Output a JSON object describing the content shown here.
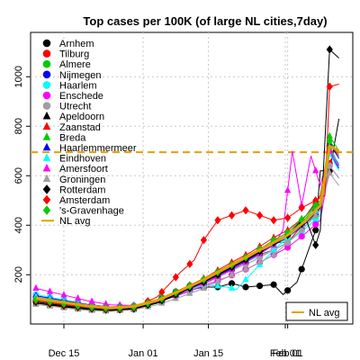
{
  "chart_data": {
    "type": "line",
    "title": "Top cases per 100K (of large NL cities,7day)",
    "xlabel": "",
    "ylabel": "",
    "x_range": [
      -5,
      44
    ],
    "ylim": [
      30,
      1150
    ],
    "x_ticks": [
      {
        "x": 0,
        "label": "Dec 15"
      },
      {
        "x": 17,
        "label": "Jan 01"
      },
      {
        "x": 31,
        "label": "Jan 15"
      },
      {
        "x": 48,
        "label": "Feb 01"
      }
    ],
    "y_ticks": [
      200,
      400,
      600,
      800,
      1000
    ],
    "grid": true,
    "reference_line": {
      "y": 695,
      "color": "#E69F00",
      "label": "NL avg"
    },
    "legend_position": "top-left",
    "avg_legend_position": "bottom-right",
    "series": [
      {
        "name": "Arnhem",
        "color": "#000000",
        "marker": "circle",
        "anchors": [
          [
            -6,
            90
          ],
          [
            0,
            72
          ],
          [
            5,
            62
          ],
          [
            10,
            55
          ],
          [
            15,
            60
          ],
          [
            20,
            90
          ],
          [
            25,
            130
          ],
          [
            30,
            150
          ],
          [
            33,
            150
          ],
          [
            36,
            165
          ],
          [
            39,
            150
          ],
          [
            42,
            155
          ],
          [
            45,
            160
          ],
          [
            47,
            120
          ],
          [
            50,
            170
          ],
          [
            54,
            380
          ],
          [
            55,
            620
          ],
          [
            57,
            620
          ],
          [
            59,
            830
          ]
        ]
      },
      {
        "name": "Tilburg",
        "color": "#FF0000",
        "marker": "circle",
        "anchors": [
          [
            -6,
            95
          ],
          [
            0,
            78
          ],
          [
            5,
            68
          ],
          [
            10,
            62
          ],
          [
            15,
            68
          ],
          [
            20,
            95
          ],
          [
            25,
            135
          ],
          [
            30,
            175
          ],
          [
            35,
            230
          ],
          [
            40,
            270
          ],
          [
            45,
            300
          ],
          [
            48,
            330
          ],
          [
            52,
            420
          ],
          [
            55,
            480
          ],
          [
            57,
            650
          ],
          [
            58,
            700
          ]
        ]
      },
      {
        "name": "Almere",
        "color": "#00CD00",
        "marker": "circle",
        "anchors": [
          [
            -6,
            110
          ],
          [
            0,
            92
          ],
          [
            5,
            78
          ],
          [
            10,
            70
          ],
          [
            15,
            75
          ],
          [
            20,
            100
          ],
          [
            25,
            140
          ],
          [
            30,
            180
          ],
          [
            35,
            230
          ],
          [
            40,
            280
          ],
          [
            45,
            330
          ],
          [
            48,
            330
          ],
          [
            52,
            400
          ],
          [
            55,
            470
          ],
          [
            57,
            720
          ],
          [
            59,
            640
          ]
        ]
      },
      {
        "name": "Nijmegen",
        "color": "#0000FF",
        "marker": "circle",
        "anchors": [
          [
            -6,
            100
          ],
          [
            0,
            85
          ],
          [
            5,
            72
          ],
          [
            10,
            65
          ],
          [
            15,
            70
          ],
          [
            20,
            95
          ],
          [
            25,
            135
          ],
          [
            30,
            175
          ],
          [
            35,
            220
          ],
          [
            40,
            270
          ],
          [
            45,
            330
          ],
          [
            48,
            360
          ],
          [
            52,
            420
          ],
          [
            55,
            490
          ],
          [
            57,
            690
          ],
          [
            59,
            630
          ]
        ]
      },
      {
        "name": "Haarlem",
        "color": "#00FFFF",
        "marker": "circle",
        "anchors": [
          [
            -6,
            120
          ],
          [
            0,
            98
          ],
          [
            5,
            80
          ],
          [
            10,
            70
          ],
          [
            15,
            72
          ],
          [
            20,
            90
          ],
          [
            25,
            120
          ],
          [
            30,
            160
          ],
          [
            35,
            210
          ],
          [
            40,
            260
          ],
          [
            45,
            300
          ],
          [
            48,
            330
          ],
          [
            52,
            390
          ],
          [
            55,
            440
          ],
          [
            57,
            690
          ],
          [
            59,
            620
          ]
        ]
      },
      {
        "name": "Enschede",
        "color": "#FF00FF",
        "marker": "circle",
        "anchors": [
          [
            -6,
            110
          ],
          [
            0,
            90
          ],
          [
            5,
            76
          ],
          [
            10,
            68
          ],
          [
            15,
            70
          ],
          [
            20,
            88
          ],
          [
            25,
            120
          ],
          [
            30,
            155
          ],
          [
            35,
            190
          ],
          [
            40,
            230
          ],
          [
            45,
            280
          ],
          [
            48,
            310
          ],
          [
            52,
            370
          ],
          [
            55,
            420
          ],
          [
            57,
            640
          ],
          [
            59,
            590
          ]
        ]
      },
      {
        "name": "Utrecht",
        "color": "#A0A0A0",
        "marker": "circle",
        "anchors": [
          [
            -6,
            100
          ],
          [
            0,
            84
          ],
          [
            5,
            70
          ],
          [
            10,
            62
          ],
          [
            15,
            66
          ],
          [
            20,
            88
          ],
          [
            25,
            125
          ],
          [
            30,
            160
          ],
          [
            35,
            210
          ],
          [
            40,
            250
          ],
          [
            45,
            300
          ],
          [
            48,
            330
          ],
          [
            52,
            400
          ],
          [
            55,
            460
          ],
          [
            57,
            640
          ],
          [
            59,
            590
          ]
        ]
      },
      {
        "name": "Apeldoorn",
        "color": "#000000",
        "marker": "triangle",
        "anchors": [
          [
            -6,
            85
          ],
          [
            0,
            70
          ],
          [
            5,
            60
          ],
          [
            10,
            56
          ],
          [
            15,
            62
          ],
          [
            20,
            85
          ],
          [
            25,
            125
          ],
          [
            30,
            170
          ],
          [
            35,
            220
          ],
          [
            40,
            270
          ],
          [
            45,
            320
          ],
          [
            48,
            360
          ],
          [
            52,
            440
          ],
          [
            55,
            520
          ],
          [
            57,
            700
          ],
          [
            59,
            640
          ]
        ]
      },
      {
        "name": "Zaanstad",
        "color": "#FF0000",
        "marker": "triangle",
        "anchors": [
          [
            -6,
            105
          ],
          [
            0,
            88
          ],
          [
            5,
            74
          ],
          [
            10,
            66
          ],
          [
            15,
            72
          ],
          [
            20,
            96
          ],
          [
            25,
            140
          ],
          [
            30,
            185
          ],
          [
            35,
            240
          ],
          [
            40,
            290
          ],
          [
            45,
            350
          ],
          [
            48,
            380
          ],
          [
            52,
            440
          ],
          [
            55,
            520
          ],
          [
            57,
            730
          ],
          [
            59,
            680
          ]
        ]
      },
      {
        "name": "Breda",
        "color": "#00CD00",
        "marker": "triangle",
        "anchors": [
          [
            -6,
            95
          ],
          [
            0,
            80
          ],
          [
            5,
            68
          ],
          [
            10,
            62
          ],
          [
            15,
            68
          ],
          [
            20,
            92
          ],
          [
            25,
            132
          ],
          [
            30,
            175
          ],
          [
            35,
            225
          ],
          [
            40,
            275
          ],
          [
            45,
            330
          ],
          [
            48,
            360
          ],
          [
            52,
            430
          ],
          [
            55,
            500
          ],
          [
            57,
            760
          ],
          [
            59,
            700
          ]
        ]
      },
      {
        "name": "Haarlemmermeer",
        "color": "#0000FF",
        "marker": "triangle",
        "anchors": [
          [
            -6,
            115
          ],
          [
            0,
            95
          ],
          [
            5,
            80
          ],
          [
            10,
            70
          ],
          [
            15,
            72
          ],
          [
            20,
            92
          ],
          [
            25,
            130
          ],
          [
            30,
            170
          ],
          [
            35,
            215
          ],
          [
            40,
            265
          ],
          [
            45,
            320
          ],
          [
            48,
            350
          ],
          [
            52,
            410
          ],
          [
            55,
            470
          ],
          [
            57,
            730
          ],
          [
            59,
            670
          ]
        ]
      },
      {
        "name": "Eindhoven",
        "color": "#00FFFF",
        "marker": "triangle",
        "anchors": [
          [
            -6,
            110
          ],
          [
            0,
            92
          ],
          [
            5,
            78
          ],
          [
            10,
            70
          ],
          [
            15,
            74
          ],
          [
            20,
            94
          ],
          [
            25,
            128
          ],
          [
            30,
            160
          ],
          [
            35,
            150
          ],
          [
            37,
            140
          ],
          [
            40,
            200
          ],
          [
            45,
            300
          ],
          [
            48,
            350
          ],
          [
            52,
            420
          ],
          [
            55,
            480
          ],
          [
            57,
            700
          ],
          [
            59,
            650
          ]
        ]
      },
      {
        "name": "Amersfoort",
        "color": "#FF00FF",
        "marker": "triangle",
        "anchors": [
          [
            -6,
            145
          ],
          [
            0,
            118
          ],
          [
            5,
            95
          ],
          [
            10,
            78
          ],
          [
            15,
            76
          ],
          [
            20,
            92
          ],
          [
            25,
            128
          ],
          [
            30,
            165
          ],
          [
            35,
            210
          ],
          [
            40,
            260
          ],
          [
            45,
            320
          ],
          [
            47,
            380
          ],
          [
            49,
            700
          ],
          [
            51,
            480
          ],
          [
            53,
            680
          ],
          [
            55,
            560
          ],
          [
            57,
            700
          ],
          [
            59,
            640
          ]
        ]
      },
      {
        "name": "Groningen",
        "color": "#A0A0A0",
        "marker": "triangle",
        "anchors": [
          [
            -6,
            80
          ],
          [
            0,
            66
          ],
          [
            5,
            56
          ],
          [
            10,
            52
          ],
          [
            15,
            58
          ],
          [
            20,
            78
          ],
          [
            25,
            110
          ],
          [
            30,
            145
          ],
          [
            35,
            190
          ],
          [
            40,
            230
          ],
          [
            45,
            280
          ],
          [
            48,
            330
          ],
          [
            52,
            400
          ],
          [
            55,
            460
          ],
          [
            57,
            610
          ],
          [
            59,
            560
          ]
        ]
      },
      {
        "name": "Rotterdam",
        "color": "#000000",
        "marker": "diamond",
        "anchors": [
          [
            -6,
            90
          ],
          [
            0,
            75
          ],
          [
            5,
            64
          ],
          [
            10,
            58
          ],
          [
            15,
            64
          ],
          [
            20,
            88
          ],
          [
            25,
            128
          ],
          [
            30,
            170
          ],
          [
            35,
            220
          ],
          [
            40,
            270
          ],
          [
            45,
            330
          ],
          [
            48,
            360
          ],
          [
            52,
            420
          ],
          [
            54,
            320
          ],
          [
            55,
            380
          ],
          [
            57,
            1110
          ],
          [
            59,
            1075
          ]
        ]
      },
      {
        "name": "Amsterdam",
        "color": "#FF0000",
        "marker": "diamond",
        "anchors": [
          [
            -6,
            95
          ],
          [
            0,
            80
          ],
          [
            5,
            68
          ],
          [
            10,
            62
          ],
          [
            15,
            68
          ],
          [
            20,
            110
          ],
          [
            25,
            210
          ],
          [
            28,
            260
          ],
          [
            30,
            340
          ],
          [
            33,
            420
          ],
          [
            36,
            440
          ],
          [
            39,
            460
          ],
          [
            42,
            440
          ],
          [
            45,
            420
          ],
          [
            48,
            430
          ],
          [
            51,
            470
          ],
          [
            54,
            500
          ],
          [
            56,
            520
          ],
          [
            57,
            960
          ],
          [
            59,
            970
          ]
        ]
      },
      {
        "name": "'s-Gravenhage",
        "color": "#00CD00",
        "marker": "diamond",
        "anchors": [
          [
            -6,
            100
          ],
          [
            0,
            84
          ],
          [
            5,
            70
          ],
          [
            10,
            64
          ],
          [
            15,
            70
          ],
          [
            20,
            95
          ],
          [
            25,
            135
          ],
          [
            30,
            180
          ],
          [
            35,
            230
          ],
          [
            40,
            280
          ],
          [
            45,
            340
          ],
          [
            48,
            370
          ],
          [
            52,
            440
          ],
          [
            55,
            500
          ],
          [
            57,
            740
          ],
          [
            59,
            690
          ]
        ]
      }
    ],
    "nl_avg": {
      "name": "NL avg",
      "color": "#E69F00",
      "anchors": [
        [
          -6,
          105
        ],
        [
          0,
          88
        ],
        [
          5,
          74
        ],
        [
          10,
          66
        ],
        [
          15,
          72
        ],
        [
          20,
          96
        ],
        [
          25,
          136
        ],
        [
          30,
          180
        ],
        [
          35,
          230
        ],
        [
          40,
          280
        ],
        [
          45,
          330
        ],
        [
          48,
          360
        ],
        [
          52,
          420
        ],
        [
          55,
          480
        ],
        [
          57,
          720
        ],
        [
          59,
          700
        ]
      ]
    }
  }
}
